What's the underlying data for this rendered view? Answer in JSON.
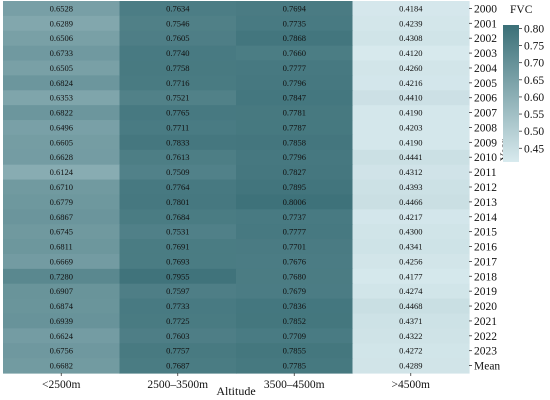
{
  "chart_data": {
    "type": "heatmap",
    "title": "",
    "xlabel": "Altitude",
    "ylabel": "Year",
    "x_categories": [
      "<2500m",
      "2500–3500m",
      "3500–4500m",
      ">4500m"
    ],
    "y_categories": [
      "2000",
      "2001",
      "2002",
      "2003",
      "2004",
      "2005",
      "2006",
      "2007",
      "2008",
      "2009",
      "2010",
      "2011",
      "2012",
      "2013",
      "2014",
      "2015",
      "2016",
      "2017",
      "2018",
      "2019",
      "2020",
      "2021",
      "2022",
      "2023",
      "Mean"
    ],
    "values": [
      [
        "0.6528",
        "0.7634",
        "0.7694",
        "0.4184"
      ],
      [
        "0.6289",
        "0.7546",
        "0.7735",
        "0.4239"
      ],
      [
        "0.6506",
        "0.7605",
        "0.7868",
        "0.4308"
      ],
      [
        "0.6733",
        "0.7740",
        "0.7660",
        "0.4120"
      ],
      [
        "0.6505",
        "0.7758",
        "0.7777",
        "0.4260"
      ],
      [
        "0.6824",
        "0.7716",
        "0.7796",
        "0.4216"
      ],
      [
        "0.6353",
        "0.7521",
        "0.7847",
        "0.4410"
      ],
      [
        "0.6822",
        "0.7765",
        "0.7781",
        "0.4190"
      ],
      [
        "0.6496",
        "0.7711",
        "0.7787",
        "0.4203"
      ],
      [
        "0.6605",
        "0.7833",
        "0.7858",
        "0.4190"
      ],
      [
        "0.6628",
        "0.7613",
        "0.7796",
        "0.4441"
      ],
      [
        "0.6124",
        "0.7509",
        "0.7827",
        "0.4312"
      ],
      [
        "0.6710",
        "0.7764",
        "0.7895",
        "0.4393"
      ],
      [
        "0.6779",
        "0.7801",
        "0.8006",
        "0.4466"
      ],
      [
        "0.6867",
        "0.7684",
        "0.7737",
        "0.4217"
      ],
      [
        "0.6745",
        "0.7531",
        "0.7777",
        "0.4300"
      ],
      [
        "0.6811",
        "0.7691",
        "0.7701",
        "0.4341"
      ],
      [
        "0.6669",
        "0.7693",
        "0.7676",
        "0.4256"
      ],
      [
        "0.7280",
        "0.7955",
        "0.7680",
        "0.4177"
      ],
      [
        "0.6907",
        "0.7597",
        "0.7679",
        "0.4274"
      ],
      [
        "0.6874",
        "0.7733",
        "0.7836",
        "0.4468"
      ],
      [
        "0.6939",
        "0.7725",
        "0.7852",
        "0.4371"
      ],
      [
        "0.6624",
        "0.7603",
        "0.7709",
        "0.4322"
      ],
      [
        "0.6756",
        "0.7757",
        "0.7855",
        "0.4272"
      ],
      [
        "0.6682",
        "0.7687",
        "0.7785",
        "0.4289"
      ]
    ],
    "colorbar": {
      "label": "FVC",
      "min": 0.41,
      "max": 0.81,
      "ticks": [
        "0.80",
        "0.75",
        "0.70",
        "0.65",
        "0.60",
        "0.55",
        "0.50",
        "0.45"
      ],
      "color_low": "#d8eaee",
      "color_high": "#3a6f77"
    }
  }
}
